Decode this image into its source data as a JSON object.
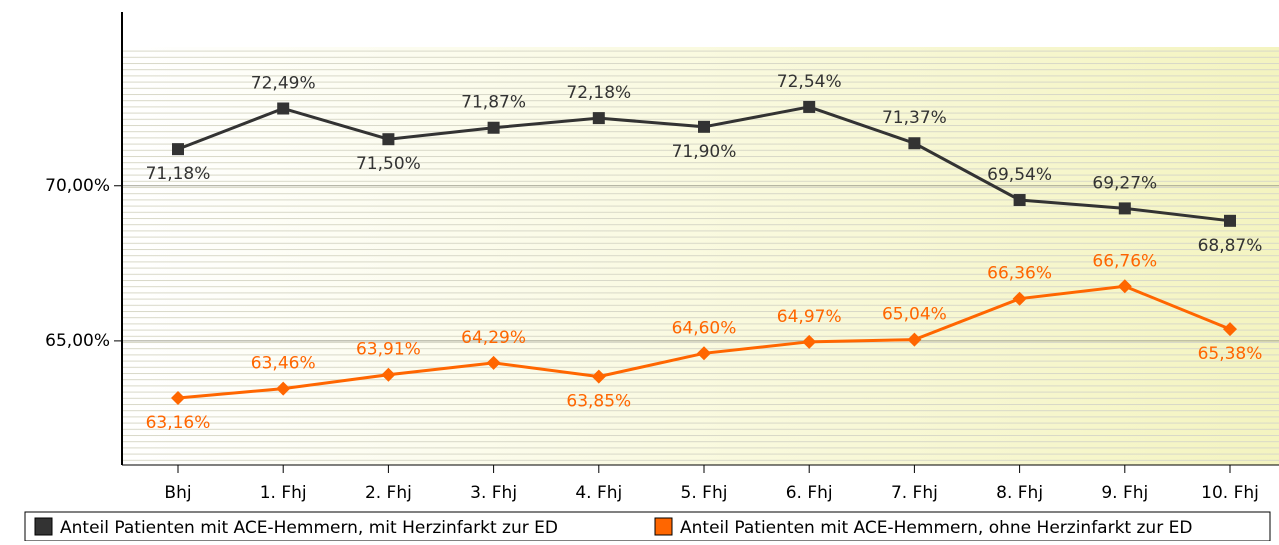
{
  "chart_data": {
    "type": "line",
    "categories": [
      "Bhj",
      "1. Fhj",
      "2. Fhj",
      "3. Fhj",
      "4. Fhj",
      "5. Fhj",
      "6. Fhj",
      "7. Fhj",
      "8. Fhj",
      "9. Fhj",
      "10. Fhj"
    ],
    "series": [
      {
        "name": "Anteil Patienten mit ACE-Hemmern, mit Herzinfarkt zur ED",
        "color": "#333333",
        "values": [
          71.18,
          72.49,
          71.5,
          71.87,
          72.18,
          71.9,
          72.54,
          71.37,
          69.54,
          69.27,
          68.87
        ],
        "value_labels": [
          "71,18%",
          "72,49%",
          "71,50%",
          "71,87%",
          "72,18%",
          "71,90%",
          "72,54%",
          "71,37%",
          "69,54%",
          "69,27%",
          "68,87%"
        ]
      },
      {
        "name": "Anteil Patienten mit ACE-Hemmern, ohne Herzinfarkt zur ED",
        "color": "#ff6600",
        "values": [
          63.16,
          63.46,
          63.91,
          64.29,
          63.85,
          64.6,
          64.97,
          65.04,
          66.36,
          66.76,
          65.38
        ],
        "value_labels": [
          "63,16%",
          "63,46%",
          "63,91%",
          "64,29%",
          "63,85%",
          "64,60%",
          "64,97%",
          "65,04%",
          "66,36%",
          "66,76%",
          "65,38%"
        ]
      }
    ],
    "ylim": [
      61,
      75.6
    ],
    "yticks": [
      {
        "value": 65,
        "label": "65,00%"
      },
      {
        "value": 70,
        "label": "70,00%"
      }
    ],
    "grid": true,
    "legend": "bottom"
  }
}
